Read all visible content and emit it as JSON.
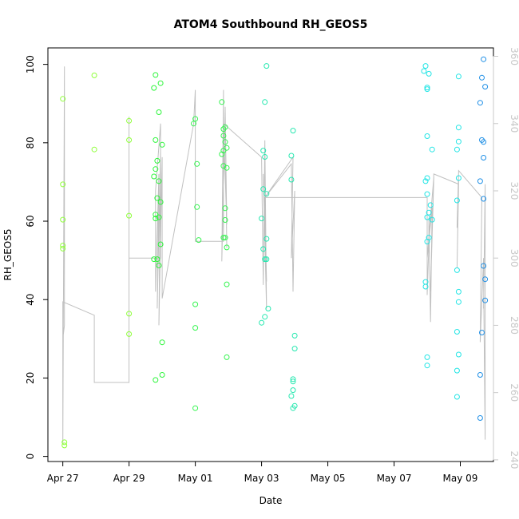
{
  "chart_data": {
    "type": "scatter",
    "title": "ATOM4 Southbound RH_GEOS5",
    "xlabel": "Date",
    "ylabel": "RH_GEOS5",
    "x_ticks": [
      "Apr 27",
      "Apr 29",
      "May 01",
      "May 03",
      "May 05",
      "May 07",
      "May 09"
    ],
    "x_tick_values": [
      0,
      2,
      4,
      6,
      8,
      10,
      12
    ],
    "xlim": [
      -0.45,
      13.0
    ],
    "y_ticks": [
      "0",
      "20",
      "40",
      "60",
      "80",
      "100"
    ],
    "y_tick_values": [
      0,
      20,
      40,
      60,
      80,
      100
    ],
    "ylim": [
      -1.3,
      104.2
    ],
    "y2_ticks": [
      "240",
      "260",
      "280",
      "300",
      "320",
      "340",
      "360"
    ],
    "y2_tick_values": [
      240,
      260,
      280,
      300,
      320,
      340,
      360
    ],
    "y2lim": [
      239.5,
      362.5
    ],
    "colors": {
      "line": "#c0c0c0",
      "axis": "#000000",
      "right_axis": "#c8c8c8",
      "green_1": "#8fff3a",
      "green_2": "#2cf53a",
      "green_3": "#3cf57c",
      "teal": "#26e8b0",
      "cyan": "#22e5e5",
      "blue": "#1e8fe6"
    },
    "series": [
      {
        "color": "#8fff3a",
        "points": [
          [
            0.0,
            91.2
          ],
          [
            0.0,
            69.4
          ],
          [
            0.0,
            60.4
          ],
          [
            0.0,
            53.8
          ],
          [
            0.0,
            53.0
          ],
          [
            0.05,
            3.6
          ],
          [
            0.05,
            2.8
          ],
          [
            0.95,
            97.2
          ],
          [
            0.95,
            78.3
          ],
          [
            2.0,
            85.6
          ],
          [
            2.0,
            80.7
          ],
          [
            2.0,
            61.4
          ],
          [
            2.0,
            36.4
          ],
          [
            2.0,
            31.2
          ]
        ]
      },
      {
        "color": "#2cf53a",
        "points": [
          [
            2.8,
            97.3
          ],
          [
            2.75,
            94.0
          ],
          [
            2.95,
            95.2
          ],
          [
            2.9,
            87.8
          ],
          [
            2.8,
            80.7
          ],
          [
            3.0,
            79.5
          ],
          [
            2.85,
            75.4
          ],
          [
            2.8,
            73.3
          ],
          [
            2.75,
            71.4
          ],
          [
            2.9,
            70.2
          ],
          [
            2.85,
            65.9
          ],
          [
            2.95,
            64.9
          ],
          [
            2.8,
            61.7
          ],
          [
            2.9,
            61.0
          ],
          [
            2.8,
            60.7
          ],
          [
            2.95,
            54.1
          ],
          [
            2.75,
            50.3
          ],
          [
            2.85,
            50.3
          ],
          [
            2.9,
            48.7
          ],
          [
            3.0,
            29.1
          ],
          [
            3.0,
            20.8
          ],
          [
            2.8,
            19.5
          ]
        ]
      },
      {
        "color": "#35f550",
        "points": [
          [
            4.0,
            86.1
          ],
          [
            3.95,
            84.9
          ],
          [
            4.05,
            74.6
          ],
          [
            4.05,
            63.6
          ],
          [
            4.1,
            55.2
          ],
          [
            4.0,
            38.8
          ],
          [
            4.0,
            32.8
          ],
          [
            4.0,
            12.3
          ],
          [
            4.8,
            90.4
          ],
          [
            4.85,
            83.5
          ],
          [
            4.9,
            84.0
          ],
          [
            4.85,
            81.8
          ],
          [
            4.9,
            80.2
          ],
          [
            4.85,
            78.0
          ],
          [
            4.8,
            77.1
          ],
          [
            4.95,
            78.7
          ],
          [
            4.85,
            74.1
          ],
          [
            4.95,
            73.6
          ],
          [
            4.9,
            63.3
          ],
          [
            4.9,
            60.3
          ],
          [
            4.85,
            55.8
          ],
          [
            4.9,
            55.8
          ],
          [
            4.95,
            53.3
          ],
          [
            4.95,
            43.9
          ],
          [
            4.95,
            25.3
          ]
        ]
      },
      {
        "color": "#26e8b0",
        "points": [
          [
            6.15,
            99.6
          ],
          [
            6.1,
            90.4
          ],
          [
            6.05,
            78.0
          ],
          [
            6.1,
            76.4
          ],
          [
            6.05,
            68.2
          ],
          [
            6.15,
            67.0
          ],
          [
            6.0,
            60.7
          ],
          [
            6.15,
            55.5
          ],
          [
            6.05,
            52.9
          ],
          [
            6.1,
            50.3
          ],
          [
            6.15,
            50.3
          ],
          [
            6.1,
            35.6
          ],
          [
            6.2,
            37.7
          ],
          [
            6.0,
            34.1
          ],
          [
            6.95,
            83.1
          ],
          [
            6.9,
            76.7
          ],
          [
            6.9,
            70.6
          ],
          [
            7.0,
            30.8
          ],
          [
            7.0,
            27.5
          ],
          [
            6.95,
            19.7
          ],
          [
            6.95,
            19.1
          ],
          [
            6.95,
            16.9
          ],
          [
            6.9,
            15.4
          ],
          [
            7.0,
            12.9
          ],
          [
            6.95,
            12.3
          ]
        ]
      },
      {
        "color": "#22e5e5",
        "points": [
          [
            10.95,
            99.6
          ],
          [
            10.9,
            98.3
          ],
          [
            11.05,
            97.6
          ],
          [
            11.0,
            94.1
          ],
          [
            11.0,
            93.7
          ],
          [
            11.0,
            81.7
          ],
          [
            11.15,
            78.3
          ],
          [
            11.0,
            71.0
          ],
          [
            10.95,
            70.2
          ],
          [
            11.0,
            66.9
          ],
          [
            11.1,
            64.1
          ],
          [
            11.05,
            62.2
          ],
          [
            11.0,
            61.0
          ],
          [
            11.15,
            60.4
          ],
          [
            11.05,
            55.8
          ],
          [
            11.0,
            54.8
          ],
          [
            10.95,
            44.5
          ],
          [
            10.95,
            43.3
          ],
          [
            11.0,
            25.3
          ],
          [
            11.0,
            23.2
          ],
          [
            11.95,
            96.9
          ],
          [
            11.95,
            83.9
          ],
          [
            11.95,
            80.3
          ],
          [
            11.9,
            78.3
          ],
          [
            11.95,
            71.0
          ],
          [
            11.9,
            65.3
          ],
          [
            11.9,
            47.5
          ],
          [
            11.95,
            42.0
          ],
          [
            11.95,
            39.4
          ],
          [
            11.9,
            31.8
          ],
          [
            11.95,
            26.0
          ],
          [
            11.9,
            21.9
          ],
          [
            11.9,
            15.2
          ]
        ]
      },
      {
        "color": "#1e8fe6",
        "points": [
          [
            12.7,
            101.3
          ],
          [
            12.65,
            96.6
          ],
          [
            12.75,
            94.3
          ],
          [
            12.6,
            90.2
          ],
          [
            12.65,
            80.7
          ],
          [
            12.7,
            80.2
          ],
          [
            12.7,
            76.2
          ],
          [
            12.6,
            70.2
          ],
          [
            12.7,
            65.7
          ],
          [
            12.7,
            48.6
          ],
          [
            12.75,
            45.2
          ],
          [
            12.75,
            39.8
          ],
          [
            12.65,
            31.6
          ],
          [
            12.6,
            20.8
          ],
          [
            12.6,
            9.8
          ]
        ]
      }
    ],
    "line_secondary_axis": [
      [
        0.0,
        287
      ],
      [
        0.0,
        276
      ],
      [
        0.05,
        280
      ],
      [
        0.05,
        357
      ],
      [
        0.0,
        245
      ],
      [
        0.0,
        287
      ],
      [
        0.95,
        283
      ],
      [
        0.95,
        263
      ],
      [
        2.0,
        263
      ],
      [
        2.0,
        342
      ],
      [
        2.0,
        300
      ],
      [
        2.95,
        300
      ],
      [
        2.95,
        340
      ],
      [
        2.8,
        320
      ],
      [
        2.8,
        290
      ],
      [
        2.9,
        325
      ],
      [
        2.85,
        285
      ],
      [
        2.95,
        332
      ],
      [
        2.9,
        280
      ],
      [
        3.0,
        330
      ],
      [
        3.0,
        288
      ],
      [
        3.95,
        340
      ],
      [
        4.0,
        350
      ],
      [
        4.0,
        305
      ],
      [
        4.85,
        305
      ],
      [
        4.85,
        350
      ],
      [
        4.8,
        299
      ],
      [
        4.9,
        344
      ],
      [
        4.95,
        303
      ],
      [
        4.9,
        345
      ],
      [
        4.95,
        310
      ],
      [
        4.85,
        340
      ],
      [
        6.0,
        330
      ],
      [
        6.05,
        292
      ],
      [
        6.1,
        335
      ],
      [
        6.15,
        285
      ],
      [
        6.05,
        325
      ],
      [
        6.15,
        293
      ],
      [
        6.1,
        318
      ],
      [
        6.9,
        328
      ],
      [
        6.95,
        290
      ],
      [
        7.0,
        320
      ],
      [
        6.9,
        300
      ],
      [
        6.95,
        330
      ],
      [
        6.1,
        318
      ],
      [
        11.0,
        318
      ],
      [
        11.0,
        289
      ],
      [
        11.05,
        304
      ],
      [
        11.05,
        312
      ],
      [
        11.1,
        281
      ],
      [
        11.15,
        315
      ],
      [
        11.0,
        300
      ],
      [
        11.2,
        324
      ],
      [
        11.1,
        290
      ],
      [
        11.2,
        325
      ],
      [
        11.95,
        322
      ],
      [
        11.9,
        297
      ],
      [
        11.95,
        323
      ],
      [
        11.9,
        309
      ],
      [
        11.95,
        326
      ],
      [
        12.65,
        318
      ],
      [
        12.6,
        275
      ],
      [
        12.7,
        300
      ],
      [
        12.7,
        295
      ],
      [
        12.75,
        246
      ],
      [
        12.75,
        322
      ],
      [
        12.7,
        285
      ]
    ]
  }
}
